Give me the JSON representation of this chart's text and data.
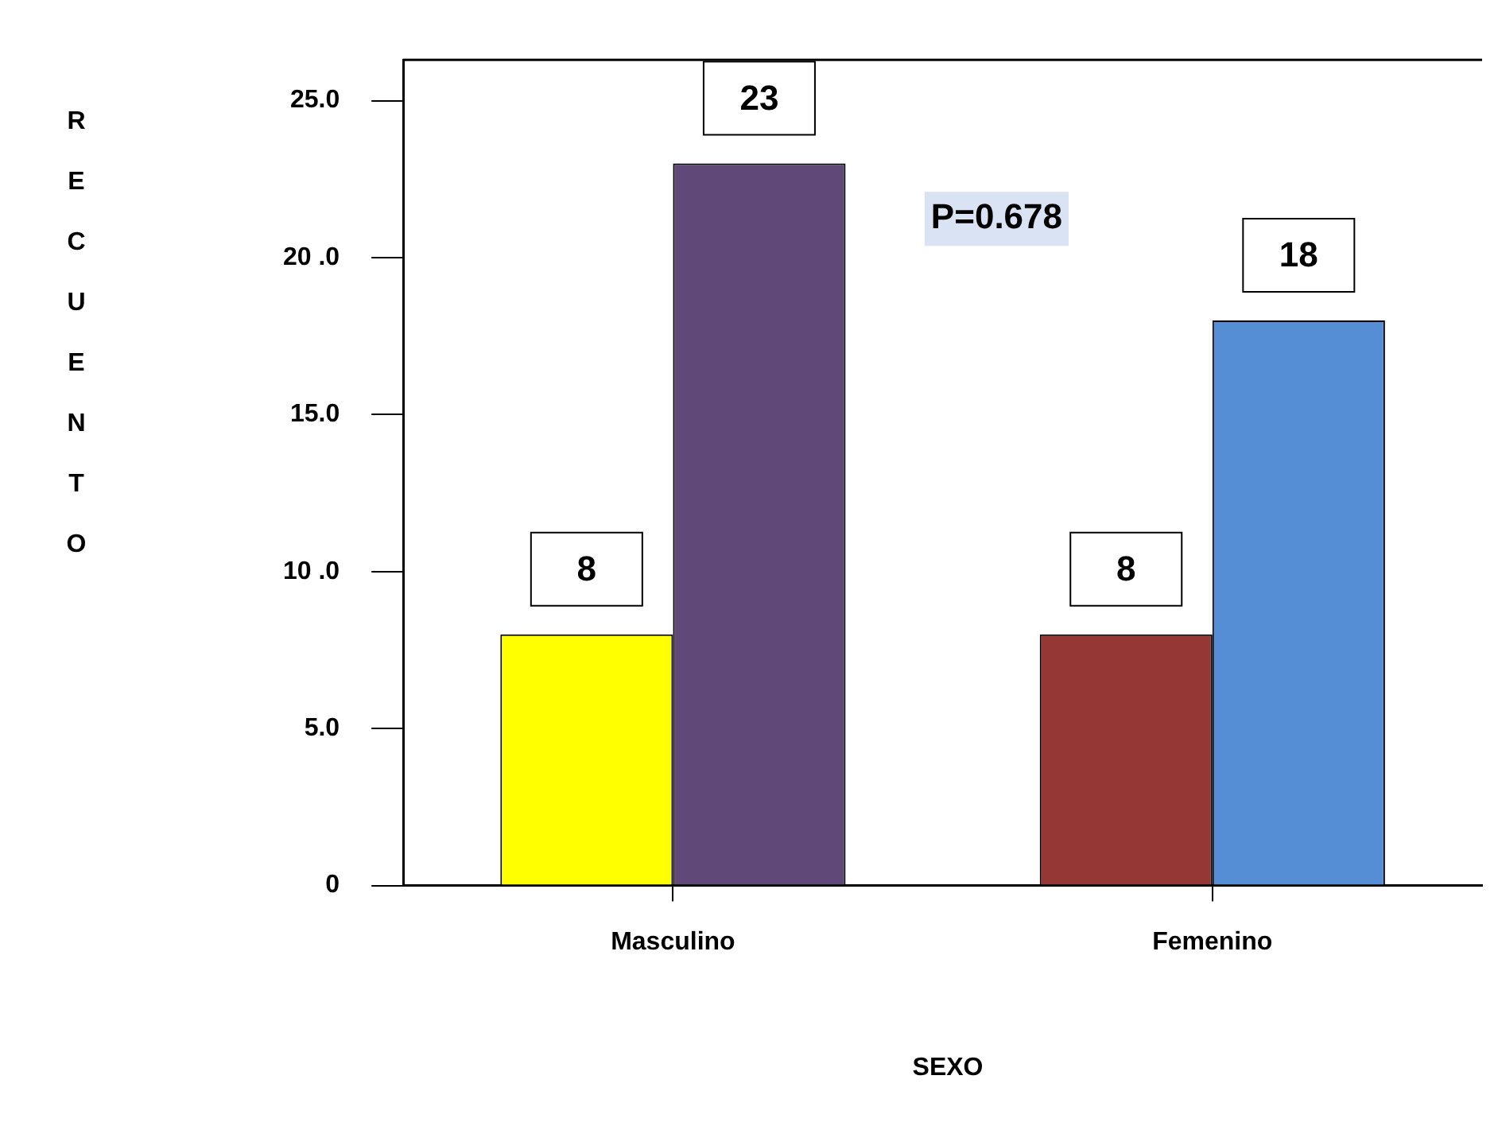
{
  "chart_data": {
    "type": "bar",
    "xlabel": "SEXO",
    "ylabel": "RECUENTO",
    "categories": [
      "Masculino",
      "Femenino"
    ],
    "series": [
      {
        "colors": [
          "#ffff00",
          "#953735"
        ],
        "values": [
          8,
          8
        ]
      },
      {
        "colors": [
          "#604878",
          "#558ed5"
        ],
        "values": [
          23,
          18
        ]
      }
    ],
    "ylim": [
      0,
      26.3
    ],
    "yticks": [
      0,
      {
        "value": 5,
        "label": "5.0"
      },
      {
        "value": 10,
        "label": "10 .0"
      },
      {
        "value": 15,
        "label": "15.0"
      },
      {
        "value": 20,
        "label": "20 .0"
      },
      {
        "value": 25,
        "label": "25.0"
      }
    ],
    "data_labels": true,
    "annotations": [
      "P=0.678"
    ]
  }
}
